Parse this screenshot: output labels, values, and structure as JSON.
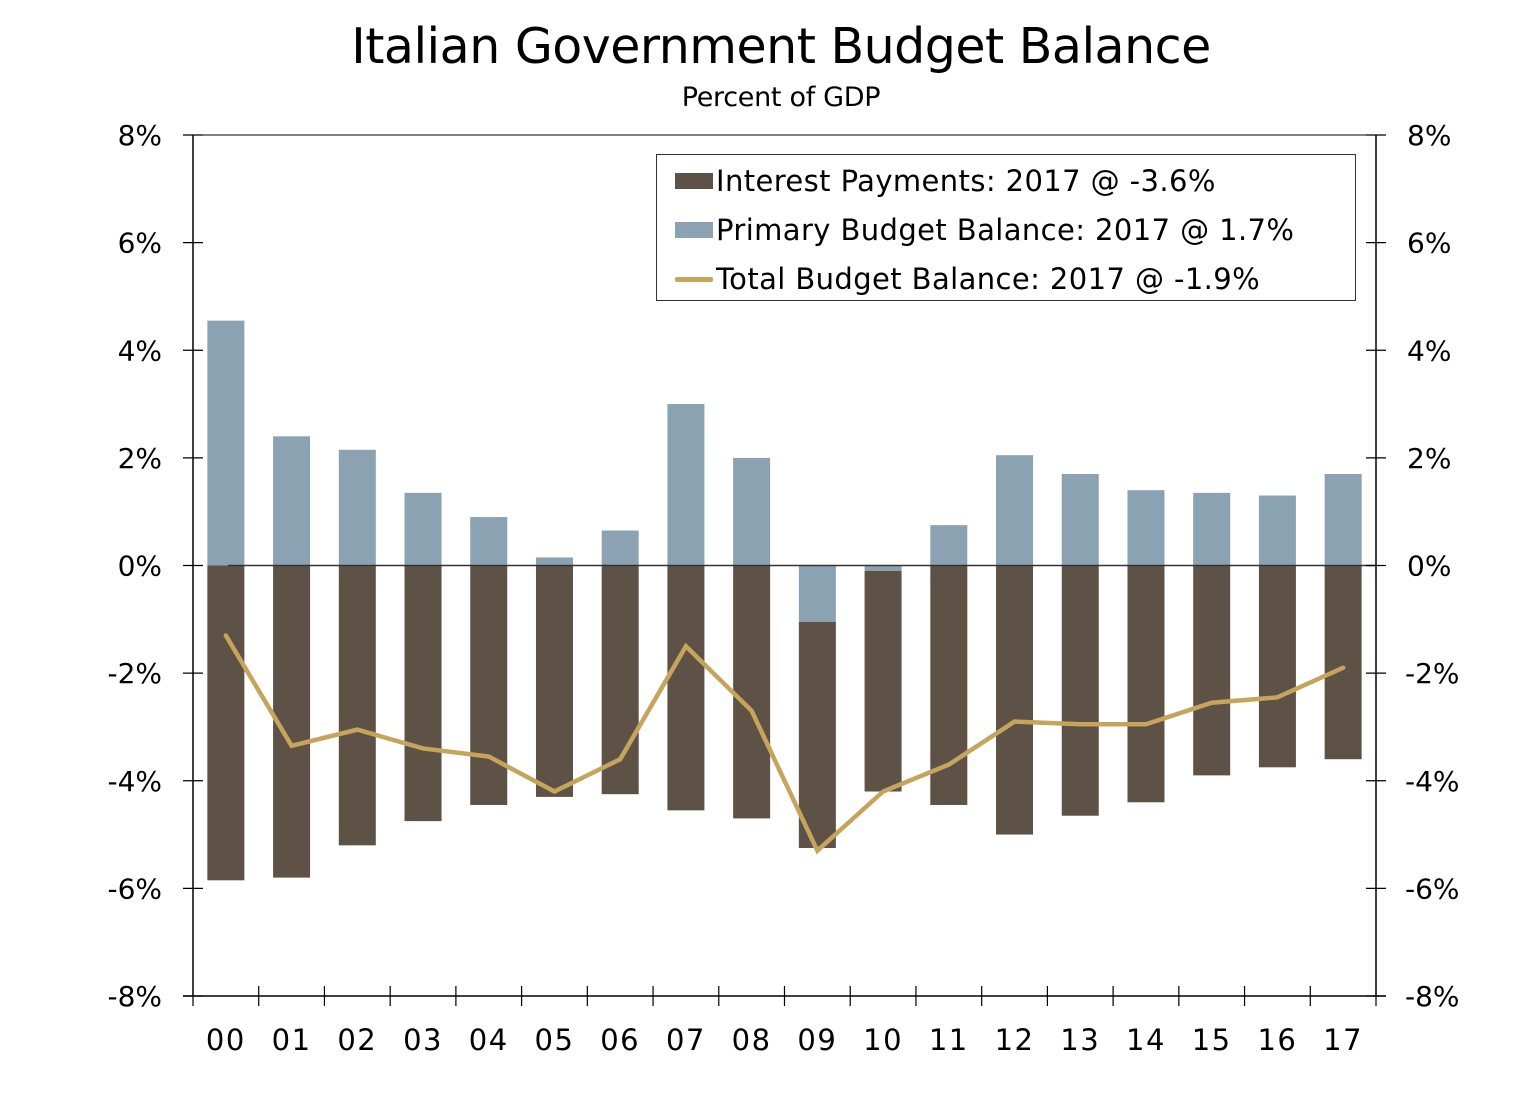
{
  "chart_data": {
    "type": "bar",
    "title": "Italian Government Budget Balance",
    "subtitle": "Percent of GDP",
    "xlabel": "",
    "ylabel": "",
    "ylim": [
      -8,
      8
    ],
    "yticks": [
      8,
      6,
      4,
      2,
      0,
      -2,
      -4,
      -6,
      -8
    ],
    "ytick_labels": [
      "8%",
      "6%",
      "4%",
      "2%",
      "0%",
      "-2%",
      "-4%",
      "-6%",
      "-8%"
    ],
    "y2ticks": [
      8,
      6,
      4,
      2,
      0,
      -2,
      -4,
      -6,
      -8
    ],
    "y2tick_labels": [
      "8%",
      "6%",
      "4%",
      "2%",
      "0%",
      "-2%",
      "-4%",
      "-6%",
      "-8%"
    ],
    "categories": [
      "00",
      "01",
      "02",
      "03",
      "04",
      "05",
      "06",
      "07",
      "08",
      "09",
      "10",
      "11",
      "12",
      "13",
      "14",
      "15",
      "16",
      "17"
    ],
    "grid": false,
    "legend_position": "top-right",
    "stacked": true,
    "series": [
      {
        "name": "Interest Payments",
        "legend_label": "Interest Payments: 2017 @ -3.6%",
        "type": "bar",
        "color": "#5e5246",
        "values": [
          -5.85,
          -5.8,
          -5.2,
          -4.75,
          -4.45,
          -4.3,
          -4.25,
          -4.55,
          -4.7,
          -4.2,
          -4.1,
          -4.45,
          -5.0,
          -4.65,
          -4.4,
          -3.9,
          -3.75,
          -3.6
        ]
      },
      {
        "name": "Primary Budget Balance",
        "legend_label": "Primary Budget Balance: 2017 @ 1.7%",
        "type": "bar",
        "color": "#8aa2b2",
        "values": [
          4.55,
          2.4,
          2.15,
          1.35,
          0.9,
          0.15,
          0.65,
          3.0,
          2.0,
          -1.05,
          -0.1,
          0.75,
          2.05,
          1.7,
          1.4,
          1.35,
          1.3,
          1.7
        ]
      },
      {
        "name": "Total Budget Balance",
        "legend_label": "Total Budget Balance: 2017 @ -1.9%",
        "type": "line",
        "color": "#c6a45c",
        "values": [
          -1.3,
          -3.35,
          -3.05,
          -3.4,
          -3.55,
          -4.2,
          -3.6,
          -1.5,
          -2.7,
          -5.3,
          -4.2,
          -3.7,
          -2.9,
          -2.95,
          -2.95,
          -2.55,
          -2.45,
          -1.9
        ]
      }
    ]
  }
}
